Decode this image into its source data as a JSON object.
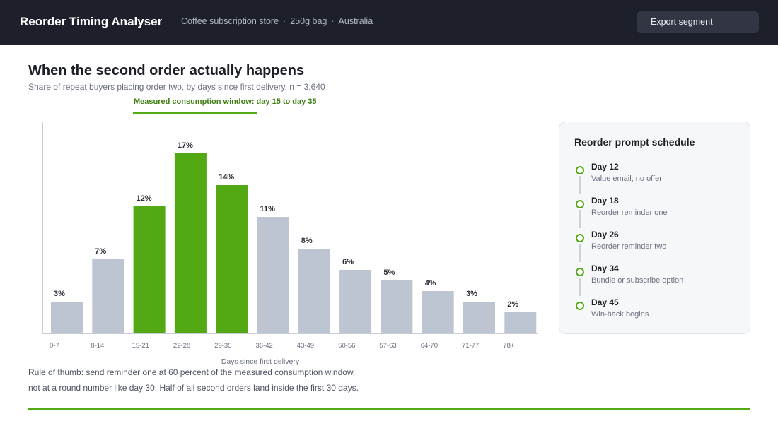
{
  "header": {
    "app_title": "Reorder Timing Analyser",
    "breadcrumbs": [
      "Coffee subscription store",
      "250g bag",
      "Australia"
    ],
    "breadcrumb_separator": "·",
    "export_label": "Export segment"
  },
  "main": {
    "title": "When the second order actually happens",
    "subtitle": "Share of repeat buyers placing order two, by days since first delivery. n = 3,640",
    "window_label": "Measured consumption window: day 15 to day 35",
    "note_line1": "Rule of thumb: send reminder one at 60 percent of the measured consumption window,",
    "note_line2": "not at a round number like day 30. Half of all second orders land inside the first 30 days."
  },
  "chart_data": {
    "type": "bar",
    "title": "When the second order actually happens",
    "xlabel": "Days since first delivery",
    "ylabel": "",
    "categories": [
      "0-7",
      "8-14",
      "15-21",
      "22-28",
      "29-35",
      "36-42",
      "43-49",
      "50-56",
      "57-63",
      "64-70",
      "71-77",
      "78+"
    ],
    "values": [
      3,
      7,
      12,
      17,
      14,
      11,
      8,
      6,
      5,
      4,
      3,
      2
    ],
    "value_labels": [
      "3%",
      "7%",
      "12%",
      "17%",
      "14%",
      "11%",
      "8%",
      "6%",
      "5%",
      "4%",
      "3%",
      "2%"
    ],
    "highlighted": [
      false,
      false,
      true,
      true,
      true,
      false,
      false,
      false,
      false,
      false,
      false,
      false
    ],
    "colors": {
      "highlight": "#52a914",
      "default": "#bdc5d3",
      "axis": "#c9ced6"
    },
    "ylim": [
      0,
      20
    ],
    "grid": false,
    "legend": "none"
  },
  "schedule": {
    "title": "Reorder prompt schedule",
    "steps": [
      {
        "day": "Day 12",
        "desc": "Value email, no offer"
      },
      {
        "day": "Day 18",
        "desc": "Reorder reminder one"
      },
      {
        "day": "Day 26",
        "desc": "Reorder reminder two"
      },
      {
        "day": "Day 34",
        "desc": "Bundle or subscribe option"
      },
      {
        "day": "Day 45",
        "desc": "Win-back begins"
      }
    ]
  },
  "colors": {
    "accent": "#52a914",
    "header_bg": "#1d202b"
  }
}
